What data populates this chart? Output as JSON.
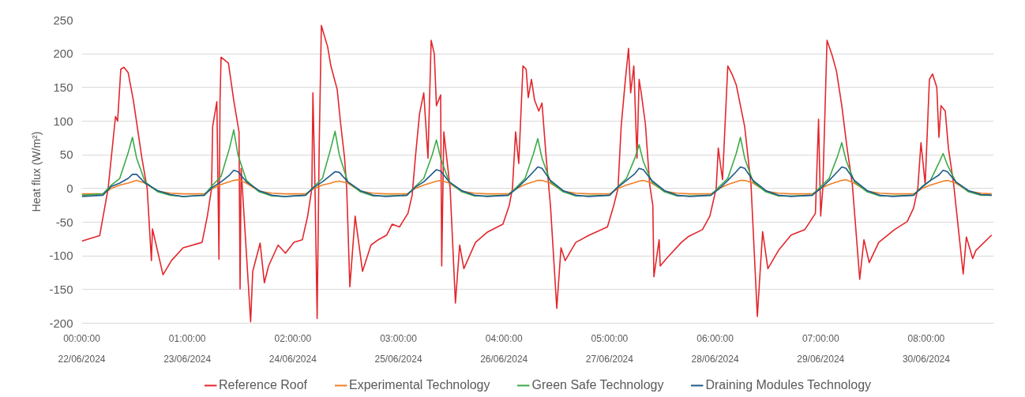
{
  "chart_data": {
    "type": "line",
    "ylabel": "Heat flux (W/m²)",
    "x": [
      "2024-06-22T00:00",
      "2024-06-22T05:00",
      "2024-06-22T07:00",
      "2024-06-22T09:00",
      "2024-06-22T11:00",
      "2024-06-22T12:00",
      "2024-06-22T13:00",
      "2024-06-22T15:00",
      "2024-06-22T18:00",
      "2024-06-22T21:00",
      "2024-06-23T00:00",
      "2024-06-23T05:00",
      "2024-06-23T07:00",
      "2024-06-23T09:00",
      "2024-06-23T11:00",
      "2024-06-23T12:00",
      "2024-06-23T13:00",
      "2024-06-23T15:00",
      "2024-06-23T18:00",
      "2024-06-23T21:00",
      "2024-06-24T00:00",
      "2024-06-24T05:00",
      "2024-06-24T07:00",
      "2024-06-24T09:00",
      "2024-06-24T11:00",
      "2024-06-24T12:00",
      "2024-06-24T13:00",
      "2024-06-24T15:00",
      "2024-06-24T18:00",
      "2024-06-24T21:00",
      "2024-06-25T00:00",
      "2024-06-25T05:00",
      "2024-06-25T07:00",
      "2024-06-25T09:00",
      "2024-06-25T11:00",
      "2024-06-25T12:00",
      "2024-06-25T13:00",
      "2024-06-25T15:00",
      "2024-06-25T18:00",
      "2024-06-25T21:00",
      "2024-06-26T00:00",
      "2024-06-26T05:00",
      "2024-06-26T07:00",
      "2024-06-26T09:00",
      "2024-06-26T11:00",
      "2024-06-26T12:00",
      "2024-06-26T13:00",
      "2024-06-26T15:00",
      "2024-06-26T18:00",
      "2024-06-26T21:00",
      "2024-06-27T00:00",
      "2024-06-27T05:00",
      "2024-06-27T07:00",
      "2024-06-27T09:00",
      "2024-06-27T11:00",
      "2024-06-27T12:00",
      "2024-06-27T13:00",
      "2024-06-27T15:00",
      "2024-06-27T18:00",
      "2024-06-27T21:00",
      "2024-06-28T00:00",
      "2024-06-28T05:00",
      "2024-06-28T07:00",
      "2024-06-28T09:00",
      "2024-06-28T11:00",
      "2024-06-28T12:00",
      "2024-06-28T13:00",
      "2024-06-28T15:00",
      "2024-06-28T18:00",
      "2024-06-28T21:00",
      "2024-06-29T00:00",
      "2024-06-29T05:00",
      "2024-06-29T07:00",
      "2024-06-29T09:00",
      "2024-06-29T11:00",
      "2024-06-29T12:00",
      "2024-06-29T13:00",
      "2024-06-29T15:00",
      "2024-06-29T18:00",
      "2024-06-29T21:00",
      "2024-06-30T00:00",
      "2024-06-30T05:00",
      "2024-06-30T07:00",
      "2024-06-30T09:00",
      "2024-06-30T11:00",
      "2024-06-30T12:00",
      "2024-06-30T13:00",
      "2024-06-30T15:00",
      "2024-06-30T18:00",
      "2024-06-30T21:00",
      "2024-06-30T23:30"
    ],
    "series": [
      {
        "name": "Reference Roof",
        "color": "#e3262c",
        "x": [
          "2024-06-22T00:00",
          "2024-06-22T04:15",
          "2024-06-22T06:15",
          "2024-06-22T08:00",
          "2024-06-22T08:30",
          "2024-06-22T09:15",
          "2024-06-22T10:00",
          "2024-06-22T11:00",
          "2024-06-22T12:15",
          "2024-06-22T14:15",
          "2024-06-22T15:30",
          "2024-06-22T16:30",
          "2024-06-22T16:45",
          "2024-06-22T19:15",
          "2024-06-22T21:15",
          "2024-06-23T00:00",
          "2024-06-23T04:30",
          "2024-06-23T05:45",
          "2024-06-23T06:45",
          "2024-06-23T07:00",
          "2024-06-23T08:00",
          "2024-06-23T08:30",
          "2024-06-23T08:45",
          "2024-06-23T09:00",
          "2024-06-23T10:45",
          "2024-06-23T12:00",
          "2024-06-23T13:15",
          "2024-06-23T13:30",
          "2024-06-23T13:45",
          "2024-06-23T16:00",
          "2024-06-23T16:30",
          "2024-06-23T18:15",
          "2024-06-23T19:15",
          "2024-06-23T20:15",
          "2024-06-23T22:30",
          "2024-06-24T00:15",
          "2024-06-24T02:15",
          "2024-06-24T04:15",
          "2024-06-24T05:30",
          "2024-06-24T06:30",
          "2024-06-24T06:45",
          "2024-06-24T07:15",
          "2024-06-24T07:45",
          "2024-06-24T08:15",
          "2024-06-24T08:45",
          "2024-06-24T10:15",
          "2024-06-24T11:00",
          "2024-06-24T12:30",
          "2024-06-24T13:15",
          "2024-06-24T14:15",
          "2024-06-24T14:45",
          "2024-06-24T15:30",
          "2024-06-24T16:45",
          "2024-06-24T18:30",
          "2024-06-24T20:30",
          "2024-06-24T22:15",
          "2024-06-25T00:15",
          "2024-06-25T01:30",
          "2024-06-25T03:15",
          "2024-06-25T05:15",
          "2024-06-25T06:15",
          "2024-06-25T07:00",
          "2024-06-25T08:00",
          "2024-06-25T09:00",
          "2024-06-25T10:00",
          "2024-06-25T10:45",
          "2024-06-25T11:30",
          "2024-06-25T12:00",
          "2024-06-25T13:00",
          "2024-06-25T13:15",
          "2024-06-25T13:45",
          "2024-06-25T15:15",
          "2024-06-25T16:30",
          "2024-06-25T17:30",
          "2024-06-25T18:30",
          "2024-06-25T21:15",
          "2024-06-26T00:00",
          "2024-06-26T03:45",
          "2024-06-26T05:15",
          "2024-06-26T06:00",
          "2024-06-26T06:45",
          "2024-06-26T07:30",
          "2024-06-26T08:30",
          "2024-06-26T09:15",
          "2024-06-26T09:45",
          "2024-06-26T10:30",
          "2024-06-26T11:15",
          "2024-06-26T12:15",
          "2024-06-26T13:00",
          "2024-06-26T14:00",
          "2024-06-26T15:00",
          "2024-06-26T16:30",
          "2024-06-26T17:30",
          "2024-06-26T18:30",
          "2024-06-26T21:00",
          "2024-06-27T00:15",
          "2024-06-27T04:30",
          "2024-06-27T06:00",
          "2024-06-27T07:00",
          "2024-06-27T07:45",
          "2024-06-27T08:45",
          "2024-06-27T09:30",
          "2024-06-27T10:00",
          "2024-06-27T10:45",
          "2024-06-27T11:30",
          "2024-06-27T12:00",
          "2024-06-27T12:30",
          "2024-06-27T13:30",
          "2024-06-27T14:30",
          "2024-06-27T15:15",
          "2024-06-27T15:30",
          "2024-06-27T16:45",
          "2024-06-27T17:00",
          "2024-06-27T18:30",
          "2024-06-27T22:00",
          "2024-06-27T23:45",
          "2024-06-28T03:00",
          "2024-06-28T04:45",
          "2024-06-28T06:15",
          "2024-06-28T06:45",
          "2024-06-28T07:45",
          "2024-06-28T09:00",
          "2024-06-28T10:00",
          "2024-06-28T11:00",
          "2024-06-28T13:00",
          "2024-06-28T14:30",
          "2024-06-28T16:00",
          "2024-06-28T17:15",
          "2024-06-28T18:30",
          "2024-06-28T21:00",
          "2024-06-29T00:00",
          "2024-06-29T03:15",
          "2024-06-29T05:45",
          "2024-06-29T06:30",
          "2024-06-29T07:00",
          "2024-06-29T07:30",
          "2024-06-29T08:30",
          "2024-06-29T09:45",
          "2024-06-29T10:45",
          "2024-06-29T12:00",
          "2024-06-29T13:15",
          "2024-06-29T14:30",
          "2024-06-29T16:15",
          "2024-06-29T17:15",
          "2024-06-29T18:30",
          "2024-06-29T20:45",
          "2024-06-30T00:30",
          "2024-06-30T03:30",
          "2024-06-30T05:00",
          "2024-06-30T06:00",
          "2024-06-30T06:45",
          "2024-06-30T07:45",
          "2024-06-30T08:45",
          "2024-06-30T09:30",
          "2024-06-30T10:30",
          "2024-06-30T11:00",
          "2024-06-30T11:30",
          "2024-06-30T12:30",
          "2024-06-30T13:15",
          "2024-06-30T14:30",
          "2024-06-30T16:45",
          "2024-06-30T17:30",
          "2024-06-30T19:00",
          "2024-06-30T19:45",
          "2024-06-30T23:30"
        ],
        "values": [
          -78,
          -70,
          0,
          107,
          100,
          177,
          180,
          172,
          130,
          45,
          0,
          -107,
          -60,
          -128,
          -107,
          -88,
          -80,
          -41,
          0,
          92,
          129,
          -105,
          129,
          195,
          186,
          131,
          84,
          -149,
          30,
          -198,
          -123,
          -81,
          -140,
          -115,
          -84,
          -96,
          -80,
          -76,
          -41,
          0,
          142,
          0,
          -193,
          68,
          242,
          210,
          182,
          147,
          100,
          45,
          0,
          -146,
          -41,
          -123,
          -84,
          -76,
          -69,
          -53,
          -57,
          -37,
          -10,
          45,
          111,
          142,
          45,
          220,
          200,
          123,
          139,
          -115,
          84,
          0,
          -170,
          -84,
          -119,
          -80,
          -65,
          -53,
          -25,
          0,
          84,
          37,
          182,
          177,
          135,
          162,
          131,
          115,
          127,
          45,
          -25,
          -178,
          -88,
          -107,
          -80,
          -69,
          -57,
          -25,
          0,
          92,
          162,
          208,
          142,
          182,
          45,
          162,
          142,
          95,
          6,
          -25,
          -131,
          -76,
          -115,
          -104,
          -80,
          -71,
          -61,
          -41,
          0,
          60,
          13,
          182,
          170,
          154,
          92,
          6,
          -190,
          -64,
          -119,
          -92,
          -69,
          -61,
          -37,
          103,
          -41,
          0,
          220,
          197,
          174,
          123,
          60,
          6,
          -135,
          -76,
          -110,
          -80,
          -61,
          -49,
          -29,
          0,
          68,
          6,
          162,
          170,
          150,
          76,
          123,
          115,
          60,
          6,
          -127,
          -72,
          -104,
          -92,
          -69
        ]
      },
      {
        "name": "Experimental Technology",
        "color": "#f07f26",
        "values": [
          -8,
          -8,
          0,
          5,
          8,
          10,
          12,
          8,
          -4,
          -7,
          -8,
          -8,
          0,
          6,
          10,
          12,
          13,
          8,
          -4,
          -7,
          -8,
          -8,
          0,
          5,
          8,
          10,
          11,
          8,
          -4,
          -7,
          -8,
          -8,
          0,
          5,
          9,
          11,
          12,
          8,
          -4,
          -7,
          -8,
          -8,
          0,
          6,
          10,
          12,
          12,
          8,
          -4,
          -7,
          -8,
          -8,
          0,
          5,
          9,
          11,
          12,
          8,
          -4,
          -7,
          -8,
          -8,
          0,
          6,
          10,
          12,
          12,
          8,
          -4,
          -7,
          -8,
          -8,
          0,
          6,
          10,
          12,
          13,
          8,
          -4,
          -7,
          -8,
          -8,
          0,
          5,
          9,
          11,
          12,
          8,
          -4,
          -7,
          -8
        ]
      },
      {
        "name": "Green Safe Technology",
        "color": "#3daa48",
        "values": [
          -10,
          -8,
          5,
          15,
          53,
          76,
          45,
          10,
          -5,
          -10,
          -12,
          -10,
          5,
          18,
          60,
          87,
          50,
          12,
          -5,
          -11,
          -12,
          -10,
          3,
          15,
          60,
          85,
          50,
          10,
          -5,
          -11,
          -11,
          -10,
          3,
          15,
          50,
          72,
          45,
          10,
          -5,
          -11,
          -11,
          -10,
          2,
          15,
          52,
          74,
          45,
          10,
          -5,
          -11,
          -11,
          -10,
          3,
          15,
          45,
          65,
          40,
          10,
          -5,
          -11,
          -11,
          -10,
          3,
          15,
          52,
          76,
          45,
          10,
          -5,
          -11,
          -11,
          -10,
          3,
          15,
          48,
          68,
          42,
          10,
          -5,
          -11,
          -11,
          -10,
          3,
          12,
          38,
          52,
          35,
          10,
          -5,
          -10,
          -10
        ]
      },
      {
        "name": "Draining Modules Technology",
        "color": "#1f5a8c",
        "values": [
          -12,
          -10,
          3,
          8,
          15,
          21,
          21,
          8,
          -3,
          -9,
          -12,
          -10,
          2,
          10,
          20,
          27,
          25,
          10,
          -3,
          -10,
          -12,
          -10,
          2,
          10,
          20,
          25,
          24,
          10,
          -3,
          -10,
          -12,
          -10,
          2,
          10,
          22,
          28,
          26,
          10,
          -3,
          -10,
          -12,
          -10,
          0,
          12,
          25,
          32,
          30,
          12,
          -3,
          -10,
          -12,
          -10,
          2,
          12,
          22,
          30,
          28,
          12,
          -3,
          -10,
          -12,
          -10,
          0,
          12,
          25,
          32,
          30,
          12,
          -3,
          -10,
          -12,
          -10,
          0,
          12,
          25,
          32,
          30,
          12,
          -3,
          -10,
          -12,
          -10,
          2,
          12,
          20,
          27,
          25,
          10,
          -3,
          -9,
          -10
        ]
      }
    ],
    "xlim": [
      "2024-06-22T00:00",
      "2024-07-01T00:00"
    ],
    "xticks": [
      {
        "value": "2024-06-22T00:00",
        "label": "00:00:00\n22/06/2024"
      },
      {
        "value": "2024-06-23T01:00",
        "label": "01:00:00\n23/06/2024"
      },
      {
        "value": "2024-06-24T02:00",
        "label": "02:00:00\n24/06/2024"
      },
      {
        "value": "2024-06-25T03:00",
        "label": "03:00:00\n25/06/2024"
      },
      {
        "value": "2024-06-26T04:00",
        "label": "04:00:00\n26/06/2024"
      },
      {
        "value": "2024-06-27T05:00",
        "label": "05:00:00\n27/06/2024"
      },
      {
        "value": "2024-06-28T06:00",
        "label": "06:00:00\n28/06/2024"
      },
      {
        "value": "2024-06-29T07:00",
        "label": "07:00:00\n29/06/2024"
      },
      {
        "value": "2024-06-30T08:00",
        "label": "08:00:00\n30/06/2024"
      }
    ],
    "ylim": [
      -200,
      250
    ],
    "yticks": [
      -200,
      -150,
      -100,
      -50,
      0,
      50,
      100,
      150,
      200,
      250
    ],
    "grid": "y",
    "legend": "bottom",
    "line_style": "solid"
  }
}
